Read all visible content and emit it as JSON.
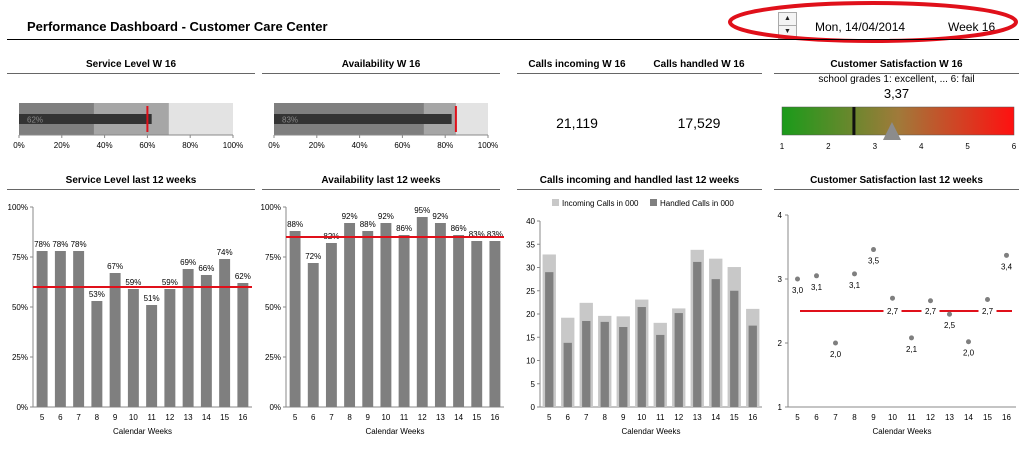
{
  "header": {
    "title": "Performance Dashboard - Customer Care Center",
    "date": "Mon, 14/04/2014",
    "week": "Week 16"
  },
  "kpi": {
    "service_level": {
      "title": "Service Level W 16",
      "value_label": "62%",
      "value": 0.62,
      "target": 0.6,
      "bands": [
        0.35,
        0.7
      ],
      "ticks": [
        "0%",
        "20%",
        "40%",
        "60%",
        "80%",
        "100%"
      ]
    },
    "availability": {
      "title": "Availability W 16",
      "value_label": "83%",
      "value": 0.83,
      "target": 0.85,
      "bands": [
        0.7,
        0.85
      ],
      "ticks": [
        "0%",
        "20%",
        "40%",
        "60%",
        "80%",
        "100%"
      ]
    },
    "calls": {
      "incoming_title": "Calls incoming W 16",
      "handled_title": "Calls handled W 16",
      "incoming_value": "21,119",
      "handled_value": "17,529"
    },
    "satisfaction": {
      "title": "Customer Satisfaction W 16",
      "subtitle": "school grades 1: excellent, ... 6: fail",
      "value_label": "3,37",
      "value": 3.37,
      "target": 2.55,
      "ticks": [
        "1",
        "2",
        "3",
        "4",
        "5",
        "6"
      ]
    }
  },
  "chart_data": [
    {
      "type": "bar",
      "title": "Service Level last 12 weeks",
      "xlabel": "Calendar Weeks",
      "ylabel": "",
      "categories": [
        "5",
        "6",
        "7",
        "8",
        "9",
        "10",
        "11",
        "12",
        "13",
        "14",
        "15",
        "16"
      ],
      "values": [
        78,
        78,
        78,
        53,
        67,
        59,
        51,
        59,
        69,
        66,
        74,
        62
      ],
      "labels": [
        "78%",
        "78%",
        "78%",
        "53%",
        "67%",
        "59%",
        "51%",
        "59%",
        "69%",
        "66%",
        "74%",
        "62%"
      ],
      "target": 60,
      "ylim": [
        0,
        100
      ],
      "yticks": [
        "0%",
        "25%",
        "50%",
        "75%",
        "100%"
      ],
      "grid": false
    },
    {
      "type": "bar",
      "title": "Availability last 12 weeks",
      "xlabel": "Calendar Weeks",
      "ylabel": "",
      "categories": [
        "5",
        "6",
        "7",
        "8",
        "9",
        "10",
        "11",
        "12",
        "13",
        "14",
        "15",
        "16"
      ],
      "values": [
        88,
        72,
        82,
        92,
        88,
        92,
        86,
        95,
        92,
        86,
        83,
        83
      ],
      "labels": [
        "88%",
        "72%",
        "82%",
        "92%",
        "88%",
        "92%",
        "86%",
        "95%",
        "92%",
        "86%",
        "83%",
        "83%"
      ],
      "target": 85,
      "ylim": [
        0,
        100
      ],
      "yticks": [
        "0%",
        "25%",
        "50%",
        "75%",
        "100%"
      ],
      "grid": false
    },
    {
      "type": "bar",
      "title": "Calls incoming and handled last 12 weeks",
      "xlabel": "Calendar Weeks",
      "ylabel": "",
      "categories": [
        "5",
        "6",
        "7",
        "8",
        "9",
        "10",
        "11",
        "12",
        "13",
        "14",
        "15",
        "16"
      ],
      "series": [
        {
          "name": "Incoming Calls in 000",
          "color": "#c8c8c8",
          "values": [
            32.8,
            19.2,
            22.4,
            19.6,
            19.5,
            23.1,
            18.1,
            21.2,
            33.8,
            31.9,
            30.1,
            21.1
          ]
        },
        {
          "name": "Handled Calls in 000",
          "color": "#7f7f7f",
          "values": [
            29.0,
            13.8,
            18.5,
            18.3,
            17.2,
            21.5,
            15.5,
            20.2,
            31.2,
            27.5,
            25.0,
            17.5
          ]
        }
      ],
      "ylim": [
        0,
        40
      ],
      "yticks": [
        "0",
        "5",
        "10",
        "15",
        "20",
        "25",
        "30",
        "35",
        "40"
      ],
      "legend": "top",
      "grid": false
    },
    {
      "type": "scatter",
      "title": "Customer Satisfaction last 12 weeks",
      "xlabel": "Calendar Weeks",
      "ylabel": "",
      "categories": [
        "5",
        "6",
        "7",
        "8",
        "9",
        "10",
        "11",
        "12",
        "13",
        "14",
        "15",
        "16"
      ],
      "values": [
        3.0,
        3.05,
        2.0,
        3.08,
        3.46,
        2.7,
        2.08,
        2.66,
        2.45,
        2.02,
        2.68,
        3.37
      ],
      "labels": [
        {
          "i": 0,
          "text": "3,0"
        },
        {
          "i": 1,
          "text": "3,1"
        },
        {
          "i": 2,
          "text": "2,0"
        },
        {
          "i": 3,
          "text": "3,1"
        },
        {
          "i": 4,
          "text": "3,5"
        },
        {
          "i": 6,
          "text": "2,1"
        },
        {
          "i": 8,
          "text": "2,5"
        },
        {
          "i": 9,
          "text": "2,0"
        },
        {
          "i": 11,
          "text": "3,4"
        }
      ],
      "target": 2.5,
      "target_labels": [
        "2,7",
        "2,7",
        "2,7"
      ],
      "ylim": [
        1,
        4
      ],
      "yticks": [
        "1",
        "2",
        "3",
        "4"
      ],
      "grid": false
    }
  ]
}
